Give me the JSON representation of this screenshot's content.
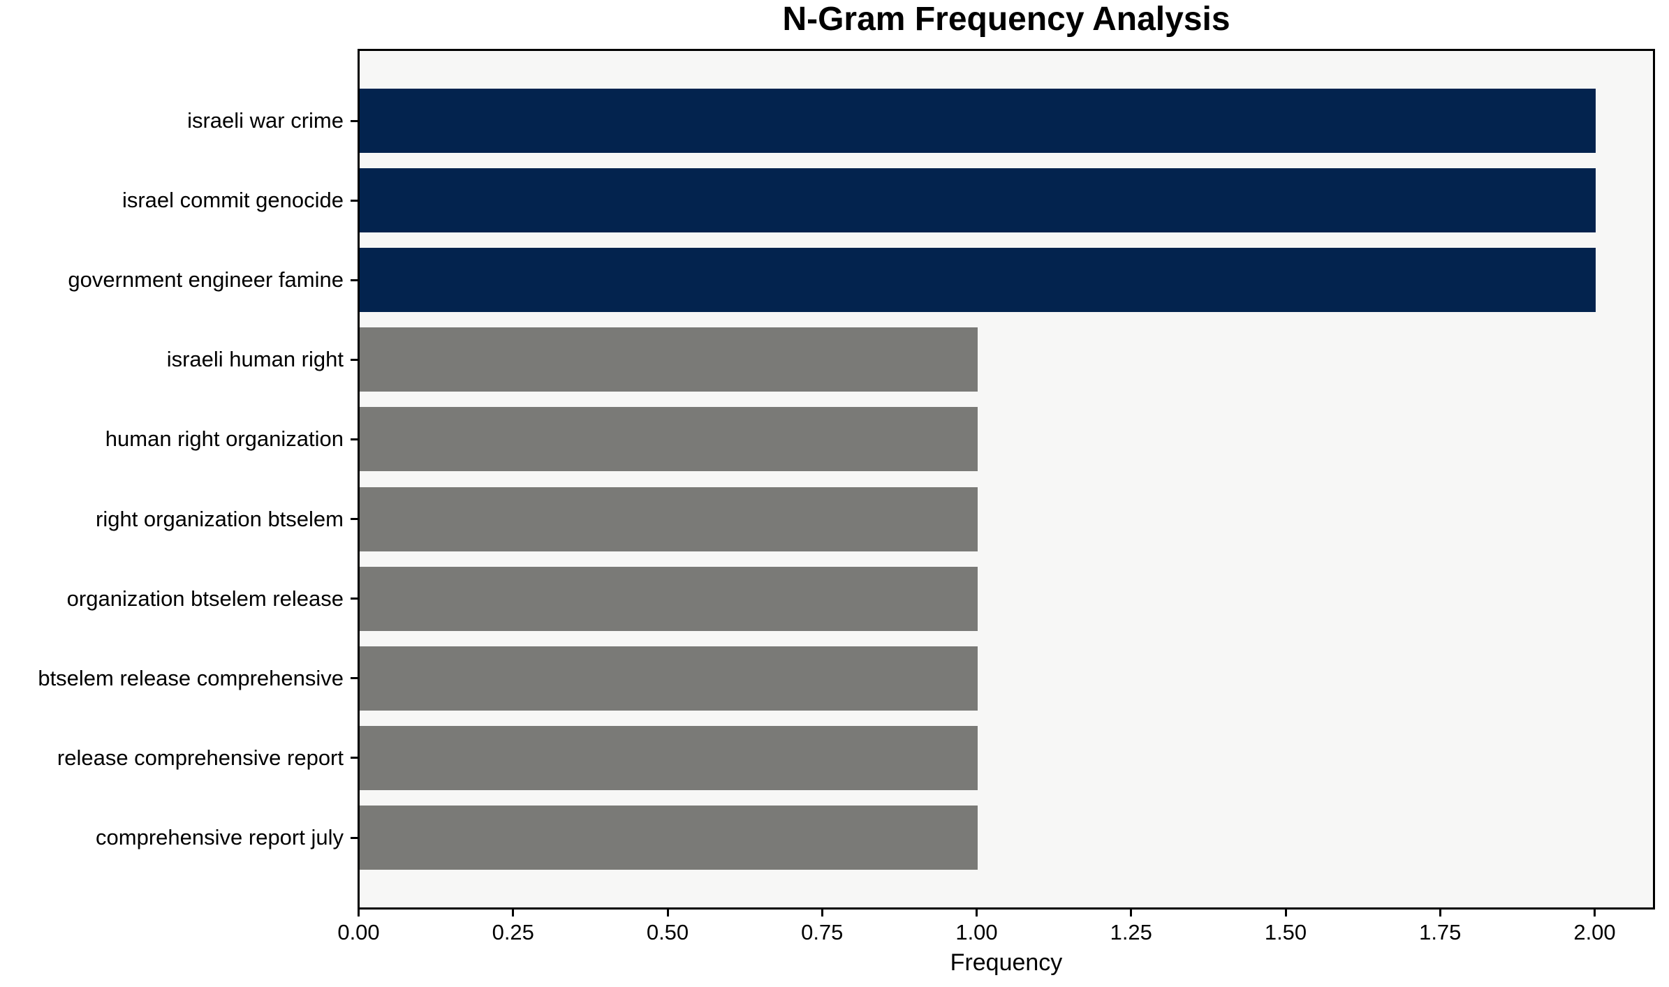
{
  "chart_data": {
    "type": "bar",
    "orientation": "horizontal",
    "title": "N-Gram Frequency Analysis",
    "xlabel": "Frequency",
    "ylabel": "",
    "categories": [
      "israeli war crime",
      "israel commit genocide",
      "government engineer famine",
      "israeli human right",
      "human right organization",
      "right organization btselem",
      "organization btselem release",
      "btselem release comprehensive",
      "release comprehensive report",
      "comprehensive report july"
    ],
    "values": [
      2,
      2,
      2,
      1,
      1,
      1,
      1,
      1,
      1,
      1
    ],
    "bar_colors": [
      "#03234e",
      "#03234e",
      "#03234e",
      "#7a7a77",
      "#7a7a77",
      "#7a7a77",
      "#7a7a77",
      "#7a7a77",
      "#7a7a77",
      "#7a7a77"
    ],
    "x_ticks": {
      "values": [
        0,
        0.25,
        0.5,
        0.75,
        1.0,
        1.25,
        1.5,
        1.75,
        2.0
      ],
      "labels": [
        "0.00",
        "0.25",
        "0.50",
        "0.75",
        "1.00",
        "1.25",
        "1.50",
        "1.75",
        "2.00"
      ]
    },
    "xlim": [
      0,
      2.1
    ],
    "grid": false,
    "legend": null,
    "colors": {
      "highlight": "#03234e",
      "default": "#7a7a77",
      "plot_background": "#f7f7f6",
      "figure_background": "#ffffff",
      "text": "#000000",
      "spine": "#000000"
    }
  }
}
